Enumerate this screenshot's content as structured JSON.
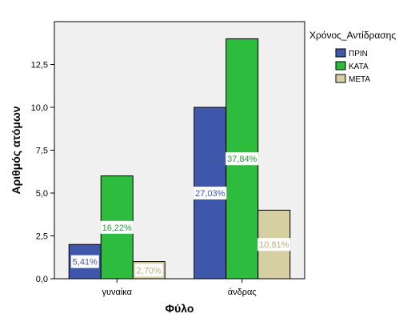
{
  "chart_data": {
    "type": "bar",
    "categories": [
      "γυναίκα",
      "άνδρας"
    ],
    "series": [
      {
        "name": "ΠΡΙΝ",
        "color": "#3F57AA",
        "values": [
          2,
          10
        ],
        "labels": [
          "5,41%",
          "27,03%"
        ]
      },
      {
        "name": "ΚΑΤΑ",
        "color": "#2DBC3E",
        "values": [
          6,
          14
        ],
        "labels": [
          "16,22%",
          "37,84%"
        ]
      },
      {
        "name": "ΜΕΤΑ",
        "color": "#D6CFA2",
        "values": [
          1,
          4
        ],
        "labels": [
          "2,70%",
          "10,81%"
        ]
      }
    ],
    "xlabel": "Φύλο",
    "ylabel": "Αριθμός ατόμων",
    "ylim": [
      0,
      15
    ],
    "yticks": [
      0,
      2.5,
      5,
      7.5,
      10,
      12.5
    ],
    "ytick_labels": [
      "0,0",
      "2,5",
      "5,0",
      "7,5",
      "10,0",
      "12,5"
    ],
    "legend_title": "Χρόνος_Αντίδρασης",
    "legend_position": "right",
    "grid": false,
    "plot_background": "#F0F0F0"
  }
}
